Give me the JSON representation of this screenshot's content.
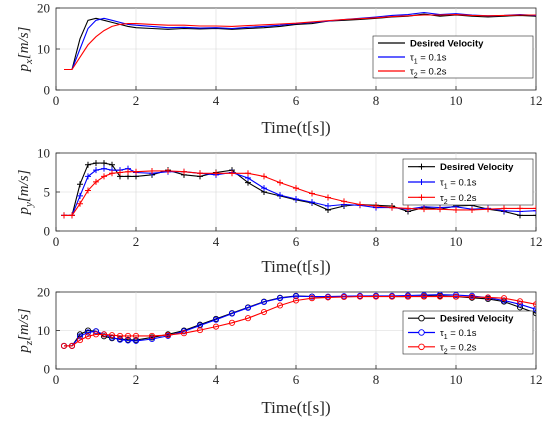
{
  "chart_data": [
    {
      "type": "line",
      "xlabel": "Time(t[s])",
      "ylabel": "p_x[m/s]",
      "xlim": [
        0,
        12
      ],
      "ylim": [
        0,
        20
      ],
      "xticks": [
        0,
        2,
        4,
        6,
        8,
        10,
        12
      ],
      "yticks": [
        0,
        10,
        20
      ],
      "grid": true,
      "legend_position": "right",
      "marker": "none",
      "series": [
        {
          "name": "Desired Velocity",
          "color": "#000000",
          "x": [
            0.2,
            0.4,
            0.6,
            0.8,
            1.0,
            1.2,
            1.4,
            1.6,
            1.8,
            2.0,
            2.4,
            2.8,
            3.2,
            3.6,
            4.0,
            4.4,
            4.8,
            5.2,
            5.6,
            6.0,
            6.4,
            6.8,
            7.2,
            7.6,
            8.0,
            8.4,
            8.8,
            9.2,
            9.6,
            10.0,
            10.4,
            10.8,
            11.2,
            11.6,
            12.0
          ],
          "y": [
            5,
            5,
            12.5,
            17,
            17.5,
            17,
            16.5,
            16,
            15.5,
            15.2,
            15,
            14.8,
            15,
            14.9,
            15,
            14.8,
            15,
            15.2,
            15.5,
            16,
            16.2,
            16.8,
            17,
            17.2,
            17.5,
            17.8,
            18,
            18.5,
            18,
            18.3,
            18,
            17.8,
            18,
            18.2,
            18
          ]
        },
        {
          "name": "τ1 = 0.1s",
          "color": "#0000ff",
          "x": [
            0.2,
            0.4,
            0.6,
            0.8,
            1.0,
            1.2,
            1.4,
            1.6,
            1.8,
            2.0,
            2.4,
            2.8,
            3.2,
            3.6,
            4.0,
            4.4,
            4.8,
            5.2,
            5.6,
            6.0,
            6.4,
            6.8,
            7.2,
            7.6,
            8.0,
            8.4,
            8.8,
            9.2,
            9.6,
            10.0,
            10.4,
            10.8,
            11.2,
            11.6,
            12.0
          ],
          "y": [
            5,
            5,
            10,
            15,
            17,
            17.5,
            17,
            16.5,
            16,
            15.8,
            15.5,
            15.2,
            15.3,
            15.1,
            15.2,
            15,
            15.3,
            15.5,
            15.8,
            16.2,
            16.5,
            16.8,
            17.2,
            17.5,
            17.8,
            18.2,
            18.4,
            18.9,
            18.4,
            18.6,
            18.3,
            18.1,
            18.2,
            18.4,
            18.2
          ]
        },
        {
          "name": "τ2 = 0.2s",
          "color": "#ff0000",
          "x": [
            0.2,
            0.4,
            0.6,
            0.8,
            1.0,
            1.2,
            1.4,
            1.6,
            1.8,
            2.0,
            2.4,
            2.8,
            3.2,
            3.6,
            4.0,
            4.4,
            4.8,
            5.2,
            5.6,
            6.0,
            6.4,
            6.8,
            7.2,
            7.6,
            8.0,
            8.4,
            8.8,
            9.2,
            9.6,
            10.0,
            10.4,
            10.8,
            11.2,
            11.6,
            12.0
          ],
          "y": [
            5,
            5,
            8,
            11,
            13,
            14.5,
            15.5,
            16,
            16.2,
            16.2,
            16,
            15.8,
            15.8,
            15.6,
            15.6,
            15.5,
            15.7,
            15.9,
            16.1,
            16.3,
            16.6,
            16.9,
            17.2,
            17.4,
            17.6,
            17.9,
            18.1,
            18.3,
            18.3,
            18.4,
            18.2,
            18.1,
            18.2,
            18.3,
            18.3
          ]
        }
      ]
    },
    {
      "type": "line",
      "xlabel": "Time(t[s])",
      "ylabel": "p_y[m/s]",
      "xlim": [
        0,
        12
      ],
      "ylim": [
        0,
        10
      ],
      "xticks": [
        0,
        2,
        4,
        6,
        8,
        10,
        12
      ],
      "yticks": [
        0,
        5,
        10
      ],
      "grid": true,
      "legend_position": "right",
      "marker": "plus",
      "series": [
        {
          "name": "Desired Velocity",
          "color": "#000000",
          "x": [
            0.2,
            0.4,
            0.6,
            0.8,
            1.0,
            1.2,
            1.4,
            1.6,
            1.8,
            2.0,
            2.4,
            2.8,
            3.2,
            3.6,
            4.0,
            4.4,
            4.8,
            5.2,
            5.6,
            6.0,
            6.4,
            6.8,
            7.2,
            7.6,
            8.0,
            8.4,
            8.8,
            9.2,
            9.6,
            10.0,
            10.4,
            10.8,
            11.2,
            11.6,
            12.0
          ],
          "y": [
            2,
            2,
            6,
            8.5,
            8.7,
            8.7,
            8.5,
            7,
            7,
            7,
            7.2,
            7.8,
            7.2,
            7,
            7.5,
            7.8,
            6.2,
            5,
            4.5,
            4,
            3.6,
            2.7,
            3.2,
            3.4,
            3.3,
            3.2,
            2.5,
            3.0,
            2.8,
            3.2,
            3.3,
            2.8,
            2.5,
            2.0,
            2.0
          ]
        },
        {
          "name": "τ1 = 0.1s",
          "color": "#0000ff",
          "x": [
            0.2,
            0.4,
            0.6,
            0.8,
            1.0,
            1.2,
            1.4,
            1.6,
            1.8,
            2.0,
            2.4,
            2.8,
            3.2,
            3.6,
            4.0,
            4.4,
            4.8,
            5.2,
            5.6,
            6.0,
            6.4,
            6.8,
            7.2,
            7.6,
            8.0,
            8.4,
            8.8,
            9.2,
            9.6,
            10.0,
            10.4,
            10.8,
            11.2,
            11.6,
            12.0
          ],
          "y": [
            2,
            2,
            4.5,
            7,
            7.8,
            8,
            7.8,
            7.8,
            8,
            7.5,
            7.4,
            7.6,
            7.6,
            7.4,
            7.2,
            7.5,
            6.8,
            5.5,
            4.6,
            4.1,
            3.7,
            3.2,
            3.4,
            3.3,
            3.0,
            3.0,
            2.8,
            3.1,
            3.0,
            3.1,
            2.8,
            2.9,
            2.6,
            2.5,
            2.6
          ]
        },
        {
          "name": "τ2 = 0.2s",
          "color": "#ff0000",
          "x": [
            0.2,
            0.4,
            0.6,
            0.8,
            1.0,
            1.2,
            1.4,
            1.6,
            1.8,
            2.0,
            2.4,
            2.8,
            3.2,
            3.6,
            4.0,
            4.4,
            4.8,
            5.2,
            5.6,
            6.0,
            6.4,
            6.8,
            7.2,
            7.6,
            8.0,
            8.4,
            8.8,
            9.2,
            9.6,
            10.0,
            10.4,
            10.8,
            11.2,
            11.6,
            12.0
          ],
          "y": [
            2,
            2,
            3.5,
            5.2,
            6.3,
            7,
            7.4,
            7.5,
            7.6,
            7.6,
            7.7,
            7.7,
            7.6,
            7.4,
            7.4,
            7.4,
            7.4,
            7.0,
            6.2,
            5.5,
            4.8,
            4.3,
            3.8,
            3.4,
            3.2,
            3.0,
            2.9,
            2.8,
            2.8,
            2.7,
            2.7,
            2.8,
            2.9,
            2.9,
            2.9
          ]
        }
      ]
    },
    {
      "type": "line",
      "xlabel": "Time(t[s])",
      "ylabel": "p_z[m/s]",
      "xlim": [
        0,
        12
      ],
      "ylim": [
        0,
        20
      ],
      "xticks": [
        0,
        2,
        4,
        6,
        8,
        10,
        12
      ],
      "yticks": [
        0,
        10,
        20
      ],
      "grid": true,
      "legend_position": "right",
      "marker": "circle",
      "series": [
        {
          "name": "Desired Velocity",
          "color": "#000000",
          "x": [
            0.2,
            0.4,
            0.6,
            0.8,
            1.0,
            1.2,
            1.4,
            1.6,
            1.8,
            2.0,
            2.4,
            2.8,
            3.2,
            3.6,
            4.0,
            4.4,
            4.8,
            5.2,
            5.6,
            6.0,
            6.4,
            6.8,
            7.2,
            7.6,
            8.0,
            8.4,
            8.8,
            9.2,
            9.6,
            10.0,
            10.4,
            10.8,
            11.2,
            11.6,
            12.0
          ],
          "y": [
            6,
            6,
            9,
            10,
            9.8,
            8.5,
            8,
            7.8,
            7.6,
            7.5,
            8.2,
            9,
            10,
            11.5,
            13,
            14.5,
            16,
            17.5,
            18.5,
            19,
            18.8,
            18.7,
            18.8,
            18.9,
            19,
            18.8,
            18.8,
            18.9,
            19,
            18.8,
            18.5,
            18.2,
            17.5,
            16,
            14.5
          ]
        },
        {
          "name": "τ1 = 0.1s",
          "color": "#0000ff",
          "x": [
            0.2,
            0.4,
            0.6,
            0.8,
            1.0,
            1.2,
            1.4,
            1.6,
            1.8,
            2.0,
            2.4,
            2.8,
            3.2,
            3.6,
            4.0,
            4.4,
            4.8,
            5.2,
            5.6,
            6.0,
            6.4,
            6.8,
            7.2,
            7.6,
            8.0,
            8.4,
            8.8,
            9.2,
            9.6,
            10.0,
            10.4,
            10.8,
            11.2,
            11.6,
            12.0
          ],
          "y": [
            6,
            6,
            8.5,
            9.5,
            9.8,
            9,
            8.2,
            7.6,
            7.4,
            7.3,
            7.8,
            8.6,
            9.8,
            11.3,
            12.8,
            14.4,
            15.9,
            17.4,
            18.4,
            18.9,
            18.8,
            18.8,
            18.9,
            19,
            19,
            19,
            19.1,
            19.2,
            19.3,
            19.2,
            19,
            18.5,
            17.8,
            16.8,
            15.5
          ]
        },
        {
          "name": "τ2 = 0.2s",
          "color": "#ff0000",
          "x": [
            0.2,
            0.4,
            0.6,
            0.8,
            1.0,
            1.2,
            1.4,
            1.6,
            1.8,
            2.0,
            2.4,
            2.8,
            3.2,
            3.6,
            4.0,
            4.4,
            4.8,
            5.2,
            5.6,
            6.0,
            6.4,
            6.8,
            7.2,
            7.6,
            8.0,
            8.4,
            8.8,
            9.2,
            9.6,
            10.0,
            10.4,
            10.8,
            11.2,
            11.6,
            12.0
          ],
          "y": [
            6,
            6,
            7.5,
            8.5,
            9,
            9,
            8.8,
            8.6,
            8.6,
            8.6,
            8.6,
            8.8,
            9.3,
            10.1,
            11,
            12,
            13.2,
            14.8,
            16.5,
            17.8,
            18.4,
            18.6,
            18.7,
            18.8,
            18.8,
            18.8,
            18.8,
            18.8,
            18.8,
            18.8,
            18.7,
            18.6,
            18.4,
            17.6,
            16.8
          ]
        }
      ]
    }
  ]
}
